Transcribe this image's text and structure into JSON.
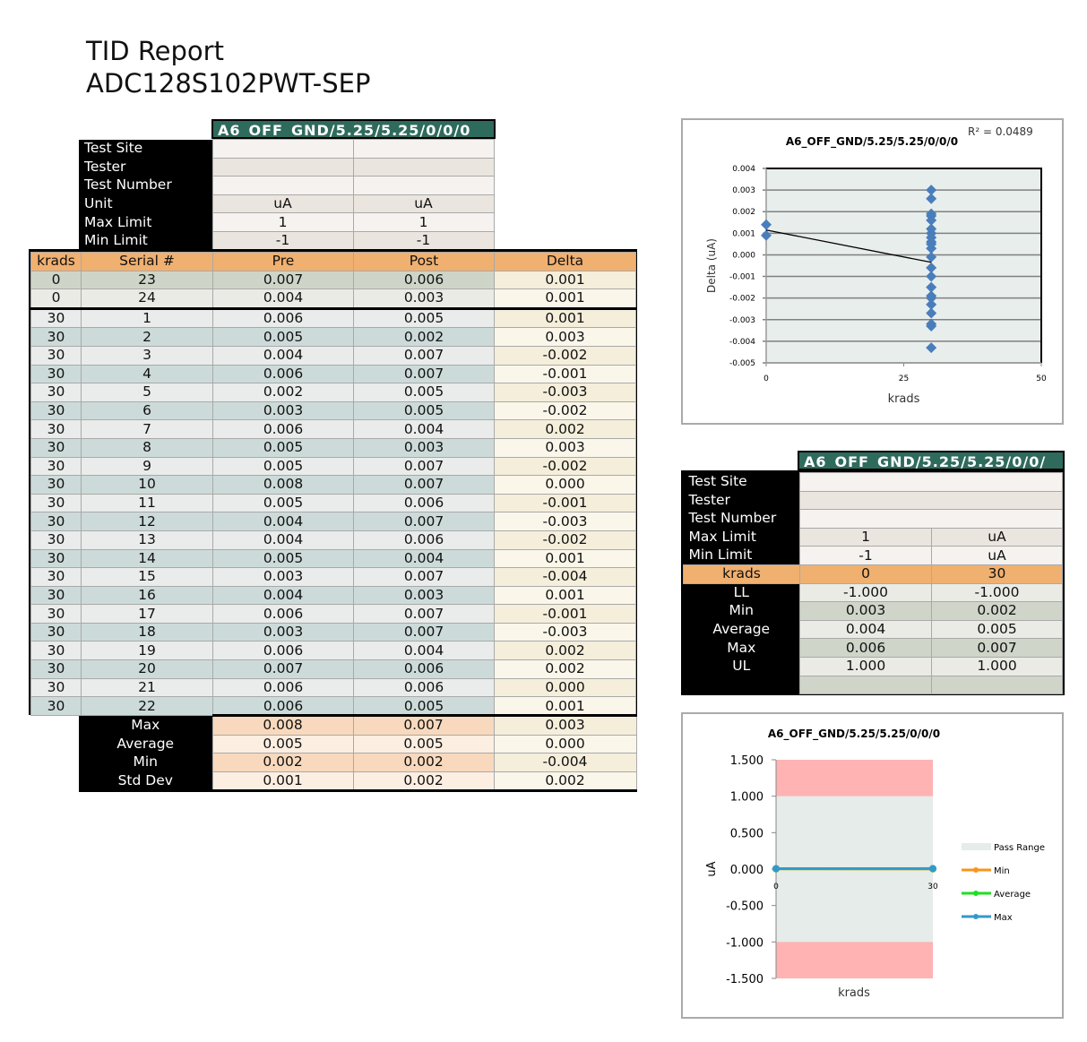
{
  "report": {
    "title": "TID Report",
    "part": "ADC128S102PWT-SEP"
  },
  "main_table": {
    "test_name": "A6_OFF_GND/5.25/5.25/0/0/0",
    "info_rows": [
      {
        "label": "Test Site",
        "pre": "",
        "post": ""
      },
      {
        "label": "Tester",
        "pre": "",
        "post": ""
      },
      {
        "label": "Test Number",
        "pre": "",
        "post": ""
      },
      {
        "label": "Unit",
        "pre": "uA",
        "post": "uA"
      },
      {
        "label": "Max Limit",
        "pre": "1",
        "post": "1"
      },
      {
        "label": "Min Limit",
        "pre": "-1",
        "post": "-1"
      }
    ],
    "headers": [
      "krads",
      "Serial #",
      "Pre",
      "Post",
      "Delta"
    ],
    "rows": [
      [
        "0",
        "23",
        "0.007",
        "0.006",
        "0.001"
      ],
      [
        "0",
        "24",
        "0.004",
        "0.003",
        "0.001"
      ],
      [
        "30",
        "1",
        "0.006",
        "0.005",
        "0.001"
      ],
      [
        "30",
        "2",
        "0.005",
        "0.002",
        "0.003"
      ],
      [
        "30",
        "3",
        "0.004",
        "0.007",
        "-0.002"
      ],
      [
        "30",
        "4",
        "0.006",
        "0.007",
        "-0.001"
      ],
      [
        "30",
        "5",
        "0.002",
        "0.005",
        "-0.003"
      ],
      [
        "30",
        "6",
        "0.003",
        "0.005",
        "-0.002"
      ],
      [
        "30",
        "7",
        "0.006",
        "0.004",
        "0.002"
      ],
      [
        "30",
        "8",
        "0.005",
        "0.003",
        "0.003"
      ],
      [
        "30",
        "9",
        "0.005",
        "0.007",
        "-0.002"
      ],
      [
        "30",
        "10",
        "0.008",
        "0.007",
        "0.000"
      ],
      [
        "30",
        "11",
        "0.005",
        "0.006",
        "-0.001"
      ],
      [
        "30",
        "12",
        "0.004",
        "0.007",
        "-0.003"
      ],
      [
        "30",
        "13",
        "0.004",
        "0.006",
        "-0.002"
      ],
      [
        "30",
        "14",
        "0.005",
        "0.004",
        "0.001"
      ],
      [
        "30",
        "15",
        "0.003",
        "0.007",
        "-0.004"
      ],
      [
        "30",
        "16",
        "0.004",
        "0.003",
        "0.001"
      ],
      [
        "30",
        "17",
        "0.006",
        "0.007",
        "-0.001"
      ],
      [
        "30",
        "18",
        "0.003",
        "0.007",
        "-0.003"
      ],
      [
        "30",
        "19",
        "0.006",
        "0.004",
        "0.002"
      ],
      [
        "30",
        "20",
        "0.007",
        "0.006",
        "0.002"
      ],
      [
        "30",
        "21",
        "0.006",
        "0.006",
        "0.000"
      ],
      [
        "30",
        "22",
        "0.006",
        "0.005",
        "0.001"
      ]
    ],
    "stats": [
      {
        "label": "Max",
        "pre": "0.008",
        "post": "0.007",
        "delta": "0.003"
      },
      {
        "label": "Average",
        "pre": "0.005",
        "post": "0.005",
        "delta": "0.000"
      },
      {
        "label": "Min",
        "pre": "0.002",
        "post": "0.002",
        "delta": "-0.004"
      },
      {
        "label": "Std Dev",
        "pre": "0.001",
        "post": "0.002",
        "delta": "0.002"
      }
    ]
  },
  "summary_table": {
    "test_name": "A6_OFF_GND/5.25/5.25/0/0/",
    "info_rows": [
      {
        "label": "Test Site",
        "a": "",
        "b": ""
      },
      {
        "label": "Tester",
        "a": "",
        "b": ""
      },
      {
        "label": "Test Number",
        "a": "",
        "b": ""
      },
      {
        "label": "Max Limit",
        "a": "1",
        "b": "uA"
      },
      {
        "label": "Min Limit",
        "a": "-1",
        "b": "uA"
      }
    ],
    "header": {
      "label": "krads",
      "a": "0",
      "b": "30"
    },
    "rows": [
      {
        "label": "LL",
        "a": "-1.000",
        "b": "-1.000"
      },
      {
        "label": "Min",
        "a": "0.003",
        "b": "0.002"
      },
      {
        "label": "Average",
        "a": "0.004",
        "b": "0.005"
      },
      {
        "label": "Max",
        "a": "0.006",
        "b": "0.007"
      },
      {
        "label": "UL",
        "a": "1.000",
        "b": "1.000"
      },
      {
        "label": "",
        "a": "",
        "b": ""
      }
    ]
  },
  "chart_data": [
    {
      "type": "scatter",
      "title": "A6_OFF_GND/5.25/5.25/0/0/0",
      "xlabel": "krads",
      "ylabel": "Delta (uA)",
      "annotation": "R² = 0.0489",
      "xlim": [
        0,
        50
      ],
      "ylim": [
        -0.005,
        0.004
      ],
      "xticks": [
        "0",
        "25",
        "50"
      ],
      "yticks": [
        "0.004",
        "0.003",
        "0.002",
        "0.001",
        "0.000",
        "-0.001",
        "-0.002",
        "-0.003",
        "-0.004",
        "-0.005"
      ],
      "grid": true,
      "trendline": "linear",
      "color": "#4a7ebb",
      "x": [
        0,
        0,
        30,
        30,
        30,
        30,
        30,
        30,
        30,
        30,
        30,
        30,
        30,
        30,
        30,
        30,
        30,
        30,
        30,
        30,
        30,
        30,
        30,
        30
      ],
      "y": [
        0.0014,
        0.0009,
        0.003,
        0.0026,
        0.0019,
        0.0018,
        0.0016,
        0.0012,
        0.001,
        0.0008,
        0.0006,
        0.0003,
        -0.0001,
        -0.0006,
        -0.001,
        -0.0015,
        -0.0019,
        -0.002,
        -0.0023,
        -0.0027,
        -0.0032,
        -0.0033,
        -0.0043,
        0.0005
      ]
    },
    {
      "type": "line",
      "title": "A6_OFF_GND/5.25/5.25/0/0/0",
      "xlabel": "krads",
      "ylabel": "uA",
      "categories": [
        "0",
        "30"
      ],
      "ylim": [
        -1.5,
        1.5
      ],
      "yticks": [
        "1.500",
        "1.000",
        "0.500",
        "0.000",
        "-0.500",
        "-1.000",
        "-1.500"
      ],
      "pass_range": [
        -1,
        1
      ],
      "legend": "right",
      "series": [
        {
          "name": "Pass Range",
          "color": "#e6ecea"
        },
        {
          "name": "Min",
          "values": [
            0.003,
            0.002
          ],
          "color": "#f7941d"
        },
        {
          "name": "Average",
          "values": [
            0.004,
            0.005
          ],
          "color": "#22dd22"
        },
        {
          "name": "Max",
          "values": [
            0.006,
            0.007
          ],
          "color": "#3399cc"
        }
      ],
      "fail_color": "#ffb3b3"
    }
  ]
}
